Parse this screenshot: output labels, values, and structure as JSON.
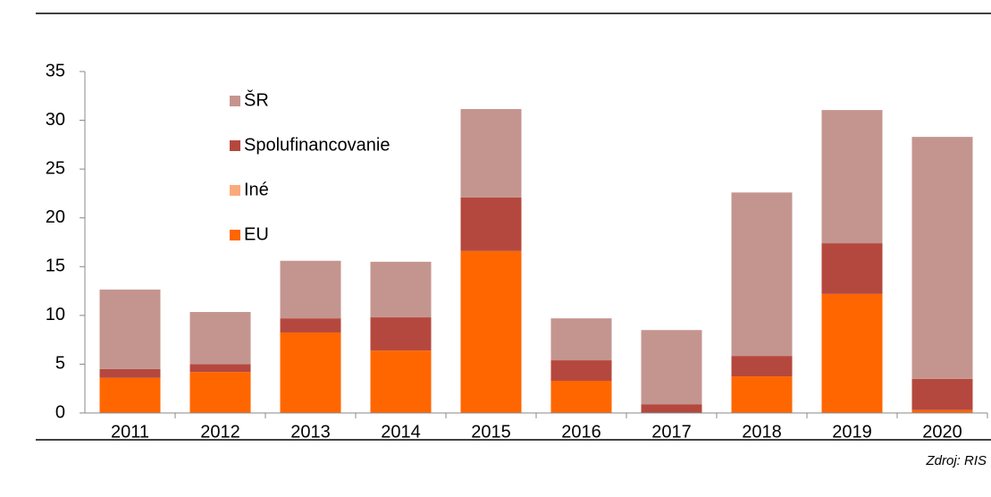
{
  "chart_data": {
    "type": "stacked_bar",
    "categories": [
      "2011",
      "2012",
      "2013",
      "2014",
      "2015",
      "2016",
      "2017",
      "2018",
      "2019",
      "2020"
    ],
    "series": [
      {
        "name": "EU",
        "color": "#ff6600",
        "values": [
          3.6,
          4.2,
          8.25,
          6.4,
          16.6,
          3.3,
          0,
          3.75,
          12.2,
          0.3
        ]
      },
      {
        "name": "Iné",
        "color": "#fbaa7c",
        "values": [
          0,
          0,
          0,
          0,
          0,
          0,
          0,
          0,
          0,
          0
        ]
      },
      {
        "name": "Spolufinancovanie",
        "color": "#b5483e",
        "values": [
          0.9,
          0.8,
          1.45,
          3.4,
          5.5,
          2.1,
          0.9,
          2.1,
          5.2,
          3.2
        ]
      },
      {
        "name": "ŠR",
        "color": "#c4958f",
        "values": [
          8.15,
          5.35,
          5.9,
          5.7,
          9.05,
          4.3,
          7.6,
          16.75,
          13.65,
          24.8
        ]
      }
    ],
    "ylim": [
      0,
      35
    ],
    "yticks": [
      0,
      5,
      10,
      15,
      20,
      25,
      30,
      35
    ],
    "legend": "upper-left",
    "source": "Zdroj: RIS"
  }
}
